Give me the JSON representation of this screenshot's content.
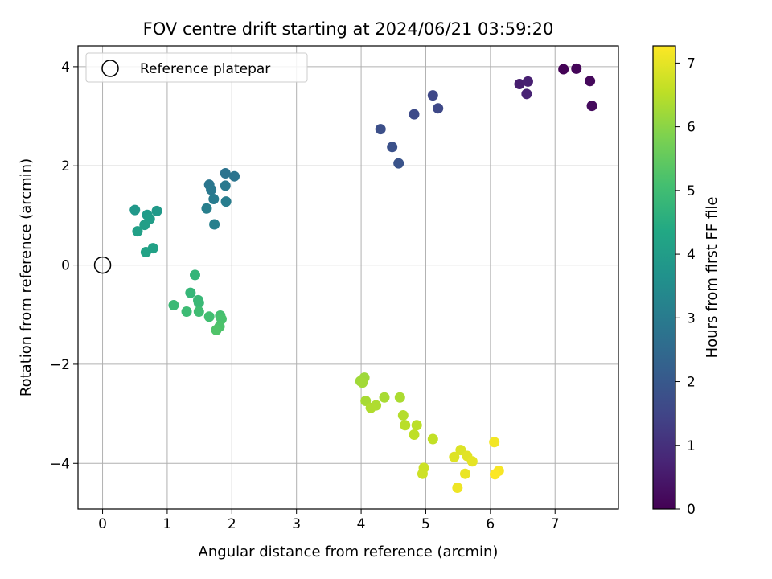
{
  "chart_data": {
    "type": "scatter",
    "title": "FOV centre drift starting at 2024/06/21 03:59:20",
    "xlabel": "Angular distance from reference (arcmin)",
    "ylabel": "Rotation from reference (arcmin)",
    "xlim": [
      -0.38,
      7.98
    ],
    "ylim": [
      -4.92,
      4.42
    ],
    "xticks": [
      0,
      1,
      2,
      3,
      4,
      5,
      6,
      7
    ],
    "yticks": [
      -4,
      -2,
      0,
      2,
      4
    ],
    "xtick_labels": [
      "0",
      "1",
      "2",
      "3",
      "4",
      "5",
      "6",
      "7"
    ],
    "ytick_labels": [
      "−4",
      "−2",
      "0",
      "2",
      "4"
    ],
    "grid": true,
    "legend": {
      "location": "top-left",
      "entries": [
        "Reference platepar"
      ]
    },
    "reference_point": {
      "x": 0,
      "y": 0
    },
    "colorbar": {
      "label": "Hours from first FF file",
      "range": [
        0,
        7.27
      ],
      "ticks": [
        0,
        1,
        2,
        3,
        4,
        5,
        6,
        7
      ],
      "tick_labels": [
        "0",
        "1",
        "2",
        "3",
        "4",
        "5",
        "6",
        "7"
      ],
      "colormap": "viridis"
    },
    "points": [
      {
        "x": 7.13,
        "y": 3.95,
        "t": 0.05
      },
      {
        "x": 7.33,
        "y": 3.96,
        "t": 0.1
      },
      {
        "x": 7.54,
        "y": 3.71,
        "t": 0.15
      },
      {
        "x": 7.57,
        "y": 3.21,
        "t": 0.2
      },
      {
        "x": 6.45,
        "y": 3.65,
        "t": 0.6
      },
      {
        "x": 6.58,
        "y": 3.7,
        "t": 0.65
      },
      {
        "x": 6.56,
        "y": 3.45,
        "t": 0.7
      },
      {
        "x": 5.11,
        "y": 3.42,
        "t": 1.55
      },
      {
        "x": 5.19,
        "y": 3.16,
        "t": 1.6
      },
      {
        "x": 4.82,
        "y": 3.04,
        "t": 1.65
      },
      {
        "x": 4.3,
        "y": 2.74,
        "t": 1.75
      },
      {
        "x": 4.48,
        "y": 2.38,
        "t": 1.8
      },
      {
        "x": 4.58,
        "y": 2.05,
        "t": 1.85
      },
      {
        "x": 1.9,
        "y": 1.85,
        "t": 2.75
      },
      {
        "x": 2.04,
        "y": 1.79,
        "t": 2.8
      },
      {
        "x": 1.65,
        "y": 1.62,
        "t": 2.85
      },
      {
        "x": 1.68,
        "y": 1.52,
        "t": 2.9
      },
      {
        "x": 1.9,
        "y": 1.6,
        "t": 2.95
      },
      {
        "x": 1.72,
        "y": 1.33,
        "t": 3.0
      },
      {
        "x": 1.91,
        "y": 1.28,
        "t": 3.05
      },
      {
        "x": 1.61,
        "y": 1.14,
        "t": 3.1
      },
      {
        "x": 1.73,
        "y": 0.82,
        "t": 3.15
      },
      {
        "x": 0.5,
        "y": 1.11,
        "t": 3.85
      },
      {
        "x": 0.84,
        "y": 1.09,
        "t": 3.9
      },
      {
        "x": 0.69,
        "y": 1.01,
        "t": 3.95
      },
      {
        "x": 0.73,
        "y": 0.93,
        "t": 4.0
      },
      {
        "x": 0.65,
        "y": 0.81,
        "t": 4.05
      },
      {
        "x": 0.54,
        "y": 0.68,
        "t": 4.1
      },
      {
        "x": 0.78,
        "y": 0.34,
        "t": 4.15
      },
      {
        "x": 0.67,
        "y": 0.26,
        "t": 4.2
      },
      {
        "x": 1.43,
        "y": -0.2,
        "t": 4.75
      },
      {
        "x": 1.36,
        "y": -0.56,
        "t": 4.8
      },
      {
        "x": 1.48,
        "y": -0.71,
        "t": 4.85
      },
      {
        "x": 1.49,
        "y": -0.76,
        "t": 4.88
      },
      {
        "x": 1.1,
        "y": -0.81,
        "t": 4.9
      },
      {
        "x": 1.3,
        "y": -0.94,
        "t": 4.95
      },
      {
        "x": 1.49,
        "y": -0.94,
        "t": 5.0
      },
      {
        "x": 1.65,
        "y": -1.04,
        "t": 5.05
      },
      {
        "x": 1.82,
        "y": -1.02,
        "t": 5.1
      },
      {
        "x": 1.84,
        "y": -1.09,
        "t": 5.15
      },
      {
        "x": 1.81,
        "y": -1.24,
        "t": 5.2
      },
      {
        "x": 1.76,
        "y": -1.31,
        "t": 5.25
      },
      {
        "x": 4.05,
        "y": -2.27,
        "t": 6.2
      },
      {
        "x": 3.99,
        "y": -2.34,
        "t": 6.22
      },
      {
        "x": 4.02,
        "y": -2.37,
        "t": 6.25
      },
      {
        "x": 4.07,
        "y": -2.74,
        "t": 6.3
      },
      {
        "x": 4.36,
        "y": -2.67,
        "t": 6.32
      },
      {
        "x": 4.6,
        "y": -2.67,
        "t": 6.35
      },
      {
        "x": 4.23,
        "y": -2.83,
        "t": 6.38
      },
      {
        "x": 4.15,
        "y": -2.88,
        "t": 6.4
      },
      {
        "x": 4.65,
        "y": -3.03,
        "t": 6.45
      },
      {
        "x": 4.68,
        "y": -3.23,
        "t": 6.5
      },
      {
        "x": 4.86,
        "y": -3.23,
        "t": 6.52
      },
      {
        "x": 4.82,
        "y": -3.42,
        "t": 6.55
      },
      {
        "x": 5.11,
        "y": -3.51,
        "t": 6.6
      },
      {
        "x": 4.97,
        "y": -4.09,
        "t": 6.7
      },
      {
        "x": 4.95,
        "y": -4.21,
        "t": 6.72
      },
      {
        "x": 5.54,
        "y": -3.73,
        "t": 6.9
      },
      {
        "x": 5.64,
        "y": -3.85,
        "t": 6.95
      },
      {
        "x": 5.44,
        "y": -3.87,
        "t": 6.92
      },
      {
        "x": 5.72,
        "y": -3.96,
        "t": 7.0
      },
      {
        "x": 5.61,
        "y": -4.21,
        "t": 7.05
      },
      {
        "x": 5.49,
        "y": -4.49,
        "t": 7.1
      },
      {
        "x": 6.06,
        "y": -3.57,
        "t": 7.15
      },
      {
        "x": 6.13,
        "y": -4.15,
        "t": 7.2
      },
      {
        "x": 6.07,
        "y": -4.22,
        "t": 7.25
      }
    ]
  }
}
